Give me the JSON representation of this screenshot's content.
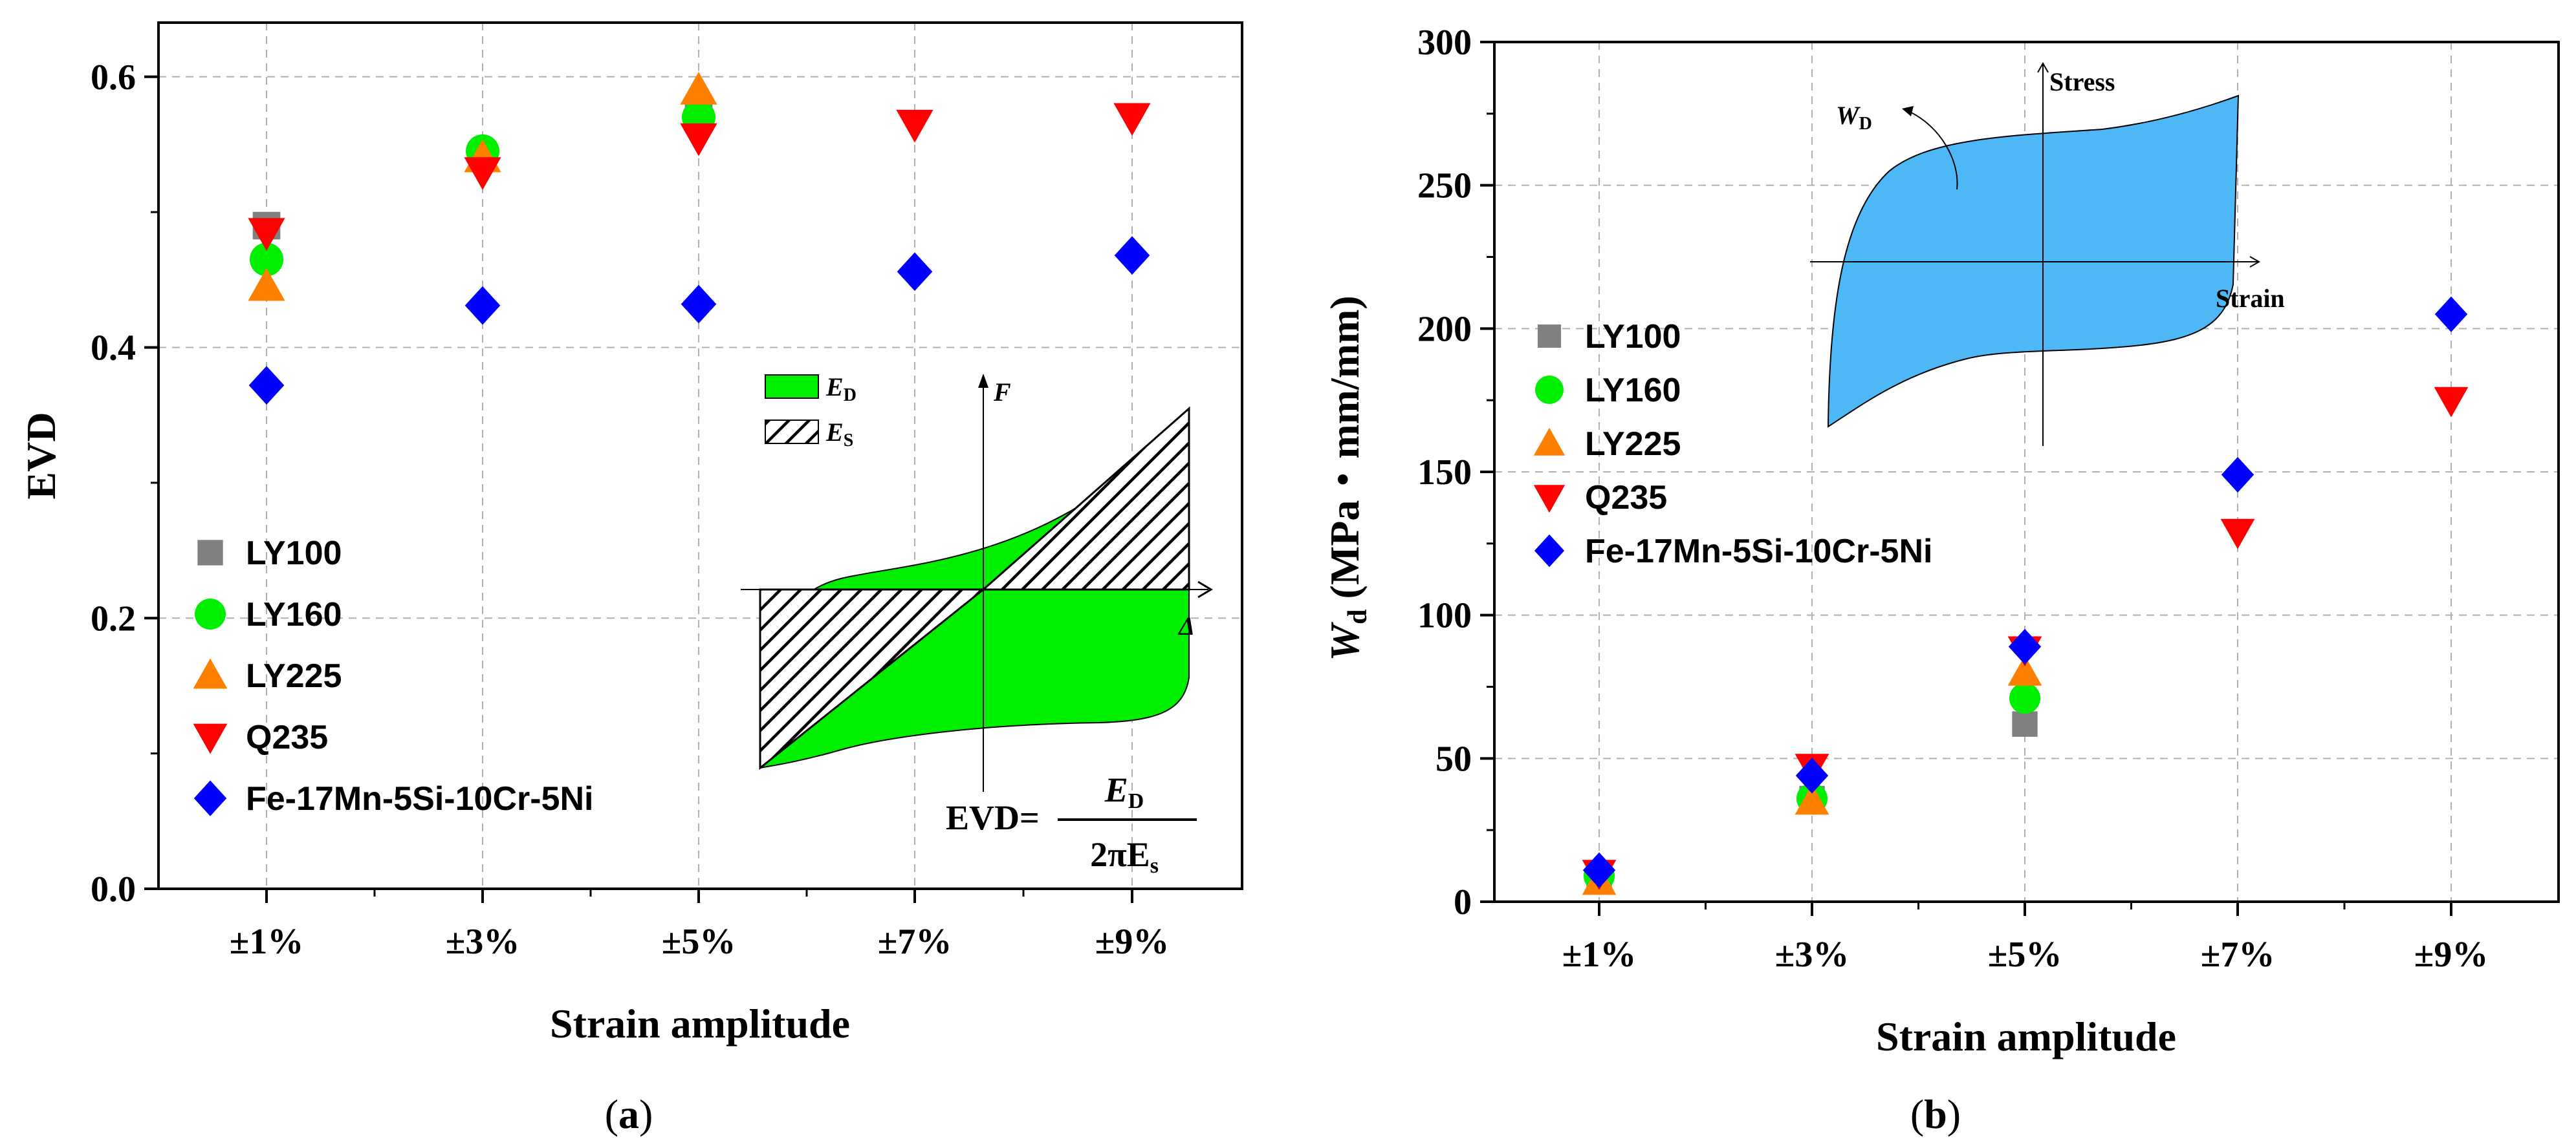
{
  "colors": {
    "LY100": "#808080",
    "LY160": "#00ee00",
    "LY225": "#ff8000",
    "Q235": "#ff0000",
    "Fe-17Mn-5Si-10Cr-5Ni": "#0000ff",
    "inset_a_fill": "#00ee00",
    "inset_b_fill": "#4db8f5",
    "grid": "#b0b0b0"
  },
  "chart_data": [
    {
      "type": "scatter",
      "panel": "a",
      "caption": "(a)",
      "caption_letter": "a",
      "xlabel": "Strain amplitude",
      "ylabel": "EVD",
      "categories": [
        "±1%",
        "±3%",
        "±5%",
        "±7%",
        "±9%"
      ],
      "ylim": [
        0.0,
        0.64
      ],
      "yticks": [
        "0.0",
        "0.2",
        "0.4",
        "0.6"
      ],
      "grid": true,
      "legend_position": "bottom-left",
      "series": [
        {
          "name": "LY100",
          "marker": "square",
          "values": [
            0.49,
            0.54,
            0.575,
            null,
            null
          ]
        },
        {
          "name": "LY160",
          "marker": "circle",
          "values": [
            0.465,
            0.545,
            0.57,
            null,
            null
          ]
        },
        {
          "name": "LY225",
          "marker": "triangle-up",
          "values": [
            0.445,
            0.54,
            0.59,
            null,
            null
          ]
        },
        {
          "name": "Q235",
          "marker": "triangle-down",
          "values": [
            0.485,
            0.53,
            0.555,
            0.565,
            0.57
          ]
        },
        {
          "name": "Fe-17Mn-5Si-10Cr-5Ni",
          "marker": "diamond",
          "values": [
            0.372,
            0.431,
            0.432,
            0.456,
            0.468
          ]
        }
      ],
      "inset": {
        "legend_ED": "E",
        "legend_ED_sub": "D",
        "legend_ES": "E",
        "legend_ES_sub": "S",
        "axis_F": "F",
        "axis_delta": "Δ",
        "formula_lhs": "EVD=",
        "formula_num": "E",
        "formula_num_sub": "D",
        "formula_den": "2πE",
        "formula_den_sub": "s"
      }
    },
    {
      "type": "scatter",
      "panel": "b",
      "caption": "(b)",
      "caption_letter": "b",
      "xlabel": "Strain amplitude",
      "ylabel": "W",
      "ylabel_sub": "d",
      "ylabel_units": " (MPa・mm/mm)",
      "categories": [
        "±1%",
        "±3%",
        "±5%",
        "±7%",
        "±9%"
      ],
      "ylim": [
        0,
        300
      ],
      "yticks": [
        "0",
        "50",
        "100",
        "150",
        "200",
        "250",
        "300"
      ],
      "grid": true,
      "legend_position": "middle-left",
      "series": [
        {
          "name": "LY100",
          "marker": "square",
          "values": [
            8,
            36,
            62,
            null,
            null
          ]
        },
        {
          "name": "LY160",
          "marker": "circle",
          "values": [
            9,
            36,
            71,
            null,
            null
          ]
        },
        {
          "name": "LY225",
          "marker": "triangle-up",
          "values": [
            7,
            35,
            80,
            null,
            null
          ]
        },
        {
          "name": "Q235",
          "marker": "triangle-down",
          "values": [
            10,
            47,
            88,
            129,
            175
          ]
        },
        {
          "name": "Fe-17Mn-5Si-10Cr-5Ni",
          "marker": "diamond",
          "values": [
            11,
            44,
            89,
            149,
            205
          ]
        }
      ],
      "inset": {
        "label_stress": "Stress",
        "label_strain": "Strain",
        "label_WD": "W",
        "label_WD_sub": "D"
      }
    }
  ]
}
